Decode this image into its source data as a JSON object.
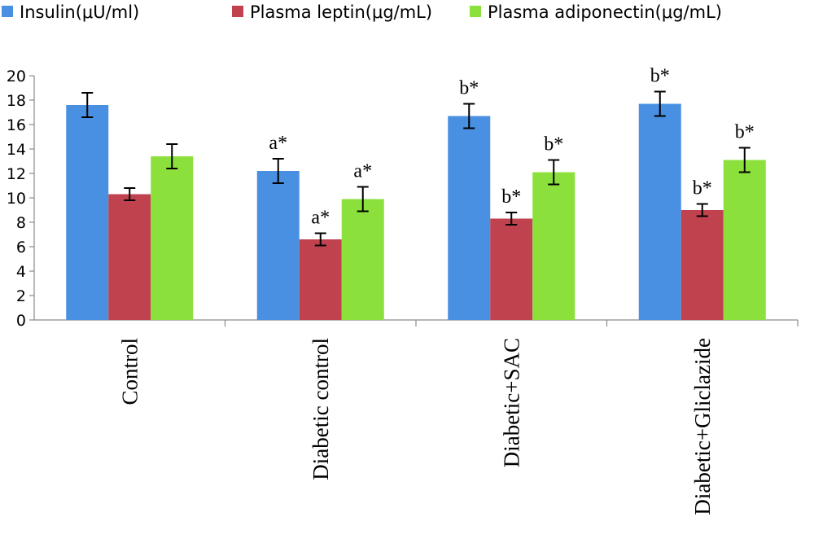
{
  "chart_data": {
    "type": "bar",
    "categories": [
      "Control",
      "Diabetic control",
      "Diabetic+SAC",
      "Diabetic+Gliclazide"
    ],
    "series": [
      {
        "name": "Insulin(μU/ml)",
        "color": "#4A90E2",
        "values": [
          17.6,
          12.2,
          16.7,
          17.7
        ],
        "errors": [
          1.0,
          1.0,
          1.0,
          1.0
        ],
        "annotations": [
          "",
          "a*",
          "b*",
          "b*"
        ]
      },
      {
        "name": "Plasma leptin(μg/mL)",
        "color": "#C0424F",
        "values": [
          10.3,
          6.6,
          8.3,
          9.0
        ],
        "errors": [
          0.5,
          0.5,
          0.5,
          0.5
        ],
        "annotations": [
          "",
          "a*",
          "b*",
          "b*"
        ]
      },
      {
        "name": "Plasma adiponectin(μg/mL)",
        "color": "#8CE03C",
        "values": [
          13.4,
          9.9,
          12.1,
          13.1
        ],
        "errors": [
          1.0,
          1.0,
          1.0,
          1.0
        ],
        "annotations": [
          "",
          "a*",
          "b*",
          "b*"
        ]
      }
    ],
    "ylim": [
      0,
      20
    ],
    "yticks": [
      "0",
      "2",
      "4",
      "6",
      "8",
      "10",
      "12",
      "14",
      "16",
      "18",
      "20"
    ],
    "legend_position": "top",
    "grid": false
  }
}
